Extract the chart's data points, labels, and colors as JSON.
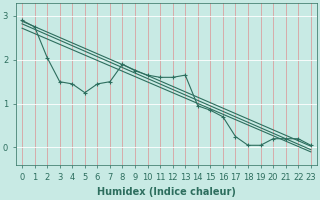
{
  "xlabel": "Humidex (Indice chaleur)",
  "xlim": [
    -0.5,
    23.5
  ],
  "ylim": [
    -0.4,
    3.3
  ],
  "yticks": [
    0,
    1,
    2,
    3
  ],
  "xticks": [
    0,
    1,
    2,
    3,
    4,
    5,
    6,
    7,
    8,
    9,
    10,
    11,
    12,
    13,
    14,
    15,
    16,
    17,
    18,
    19,
    20,
    21,
    22,
    23
  ],
  "bg_color": "#c8eae4",
  "line_color": "#2d6e5e",
  "vgrid_color": "#d9a0a0",
  "hgrid_color": "#ffffff",
  "line1_x": [
    0,
    1,
    2,
    3,
    4,
    5,
    6,
    7,
    8,
    9,
    10,
    11,
    12,
    13,
    14,
    15,
    16,
    17,
    18,
    19,
    20,
    21,
    22,
    23
  ],
  "line1_y": [
    2.9,
    2.75,
    2.05,
    1.5,
    1.45,
    1.25,
    1.45,
    1.5,
    1.9,
    1.75,
    1.65,
    1.6,
    1.6,
    1.65,
    0.95,
    0.85,
    0.7,
    0.25,
    0.05,
    0.05,
    0.2,
    0.2,
    0.2,
    0.05
  ],
  "line2_x": [
    0,
    23
  ],
  "line2_y": [
    2.88,
    0.03
  ],
  "line3_x": [
    0,
    23
  ],
  "line3_y": [
    2.82,
    -0.05
  ],
  "line4_x": [
    0,
    23
  ],
  "line4_y": [
    2.72,
    -0.1
  ],
  "fontsize_xlabel": 7,
  "tick_fontsize": 6
}
